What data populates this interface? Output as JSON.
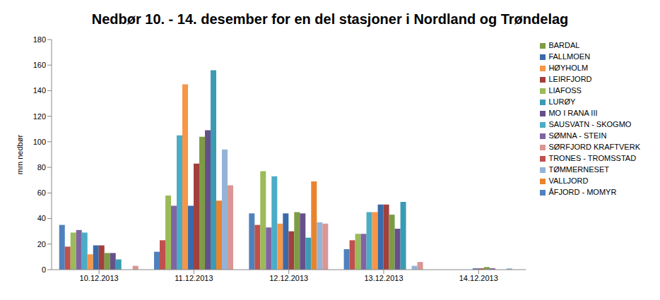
{
  "chart_data": {
    "type": "bar",
    "title": "Nedbør 10. - 14. desember for en del stasjoner i Nordland og Trøndelag",
    "y_label": "mm nedbør",
    "categories": [
      "10.12.2013",
      "11.12.2013",
      "12.12.2013",
      "13.12.2013",
      "14.12.2013"
    ],
    "series": [
      {
        "name": "ÅFJORD - MOMYR",
        "color": "#4F81BD",
        "values": [
          35,
          14,
          44,
          16,
          0
        ]
      },
      {
        "name": "TRONES - TROMSSTAD",
        "color": "#C0504D",
        "values": [
          18,
          23,
          35,
          23,
          0
        ]
      },
      {
        "name": "LIAFOSS",
        "color": "#9BBB59",
        "values": [
          29,
          58,
          77,
          28,
          0
        ]
      },
      {
        "name": "SØMNA - STEIN",
        "color": "#8064A2",
        "values": [
          31,
          50,
          33,
          28,
          0
        ]
      },
      {
        "name": "SAUSVATN - SKOGMO",
        "color": "#4BACC6",
        "values": [
          29,
          105,
          73,
          45,
          0
        ]
      },
      {
        "name": "HØYHOLM",
        "color": "#F79646",
        "values": [
          12,
          145,
          36,
          45,
          0
        ]
      },
      {
        "name": "FALLMOEN",
        "color": "#3A6AA8",
        "values": [
          19,
          50,
          44,
          51,
          1
        ]
      },
      {
        "name": "LEIRFJORD",
        "color": "#A2403D",
        "values": [
          19,
          83,
          30,
          51,
          1
        ]
      },
      {
        "name": "BARDAL",
        "color": "#7E9C44",
        "values": [
          13,
          104,
          45,
          43,
          2
        ]
      },
      {
        "name": "MO I RANA III",
        "color": "#66508A",
        "values": [
          13,
          109,
          44,
          32,
          1
        ]
      },
      {
        "name": "LURØY",
        "color": "#3B9BB3",
        "values": [
          8,
          156,
          25,
          53,
          0
        ]
      },
      {
        "name": "VALLJORD",
        "color": "#E8842E",
        "values": [
          0,
          54,
          69,
          0,
          0
        ]
      },
      {
        "name": "TØMMERNESET",
        "color": "#95B3D7",
        "values": [
          0,
          94,
          37,
          3,
          1
        ]
      },
      {
        "name": "SØRFJORD KRAFTVERK",
        "color": "#D99694",
        "values": [
          3,
          66,
          36,
          6,
          0
        ]
      }
    ],
    "ylim": [
      0,
      180
    ],
    "yticks": [
      0,
      20,
      40,
      60,
      80,
      100,
      120,
      140,
      160,
      180
    ],
    "grid": false,
    "legend": "right"
  }
}
